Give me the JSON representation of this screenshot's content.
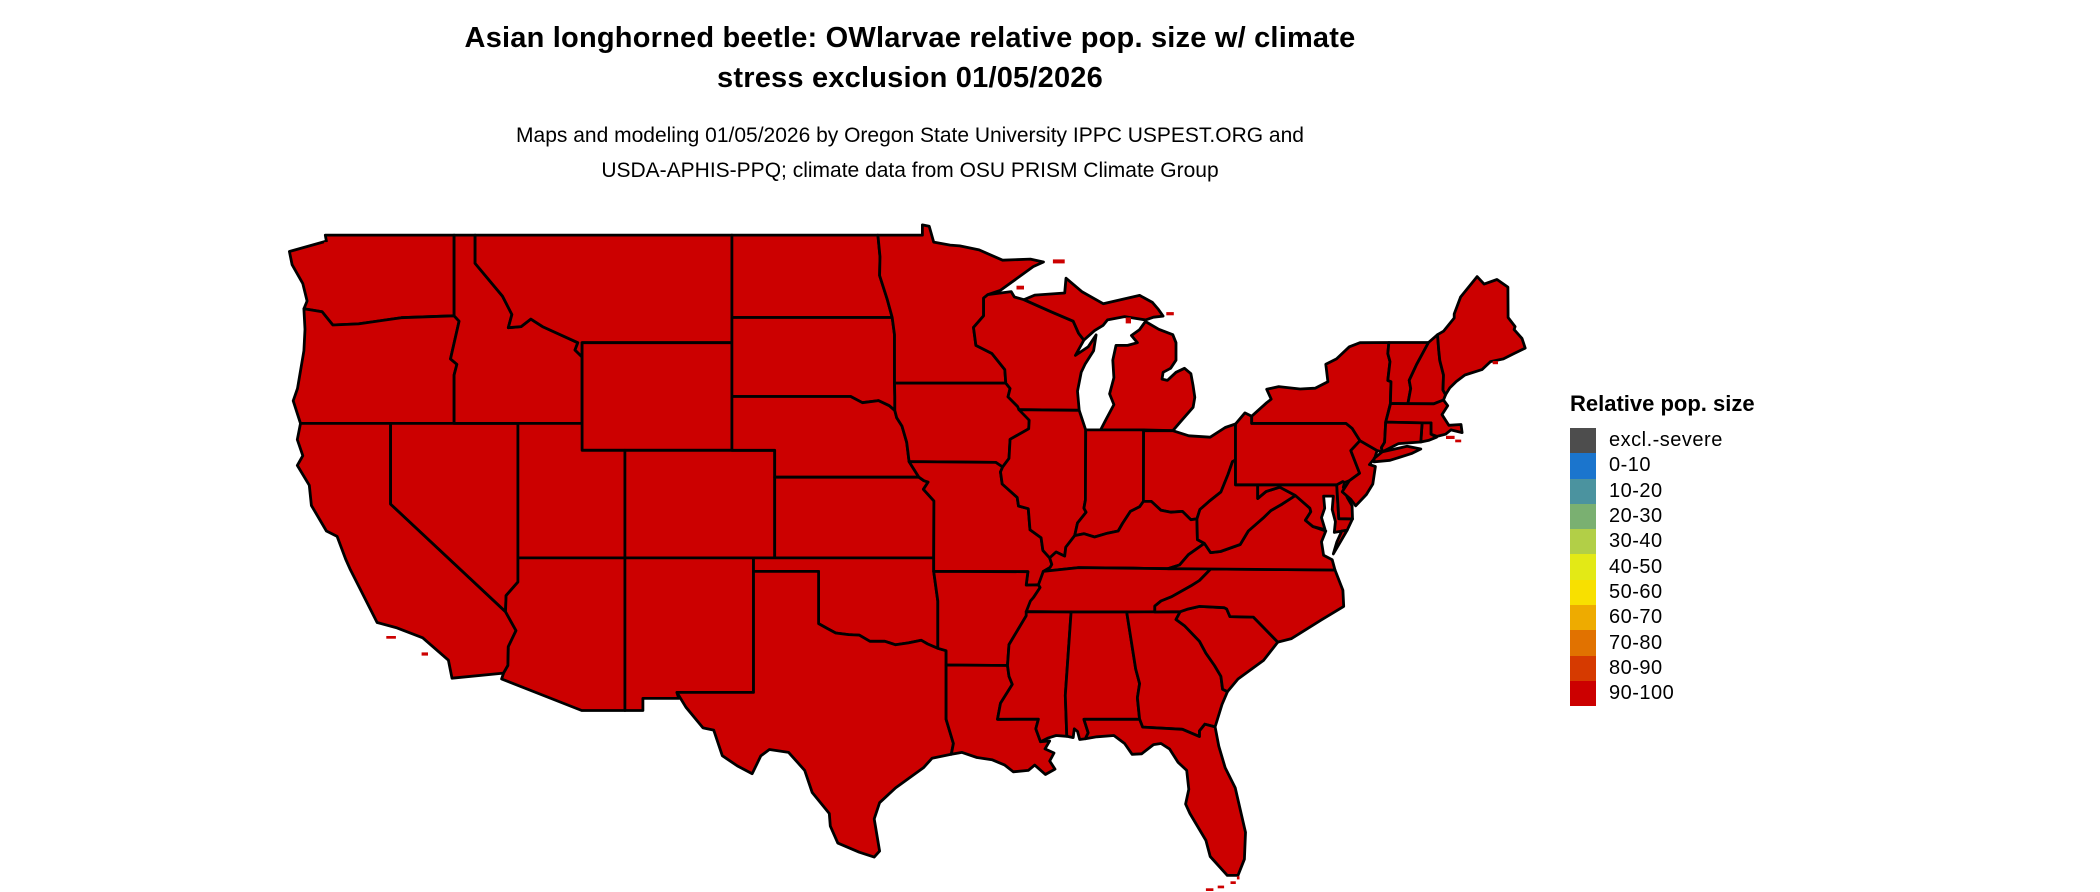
{
  "title": {
    "line1": "Asian longhorned beetle: OWlarvae relative pop. size w/ climate",
    "line2": "stress exclusion 01/05/2026"
  },
  "subtitle": {
    "line1": "Maps and modeling 01/05/2026 by Oregon State University IPPC USPEST.ORG and",
    "line2": "USDA-APHIS-PPQ; climate data from OSU PRISM Climate Group"
  },
  "legend": {
    "title": "Relative pop. size",
    "items": [
      {
        "label": "excl.-severe",
        "color": "#4d4d4d"
      },
      {
        "label": "0-10",
        "color": "#1b75cd"
      },
      {
        "label": "10-20",
        "color": "#4b939f"
      },
      {
        "label": "20-30",
        "color": "#7ab071"
      },
      {
        "label": "30-40",
        "color": "#b2cf47"
      },
      {
        "label": "40-50",
        "color": "#e3e916"
      },
      {
        "label": "50-60",
        "color": "#f8e000"
      },
      {
        "label": "60-70",
        "color": "#eeab00"
      },
      {
        "label": "70-80",
        "color": "#e17200"
      },
      {
        "label": "80-90",
        "color": "#d63a00"
      },
      {
        "label": "90-100",
        "color": "#cc0000"
      }
    ]
  },
  "map": {
    "land_fill": "#cc0000",
    "border_color": "#000000",
    "background": "#ffffff",
    "region": "Contiguous United States"
  },
  "chart_data": {
    "type": "choropleth",
    "title": "Asian longhorned beetle: OWlarvae relative pop. size w/ climate stress exclusion 01/05/2026",
    "region": "Contiguous United States (48 states)",
    "variable": "Relative pop. size",
    "legend_position": "right",
    "classes": [
      {
        "label": "excl.-severe",
        "color": "#4d4d4d"
      },
      {
        "label": "0-10",
        "color": "#1b75cd"
      },
      {
        "label": "10-20",
        "color": "#4b939f"
      },
      {
        "label": "20-30",
        "color": "#7ab071"
      },
      {
        "label": "30-40",
        "color": "#b2cf47"
      },
      {
        "label": "40-50",
        "color": "#e3e916"
      },
      {
        "label": "50-60",
        "color": "#f8e000"
      },
      {
        "label": "60-70",
        "color": "#eeab00"
      },
      {
        "label": "70-80",
        "color": "#e17200"
      },
      {
        "label": "80-90",
        "color": "#d63a00"
      },
      {
        "label": "90-100",
        "color": "#cc0000"
      }
    ],
    "values": "Entire mapped area (all 48 contiguous states) falls in the 90-100 class (red)"
  }
}
